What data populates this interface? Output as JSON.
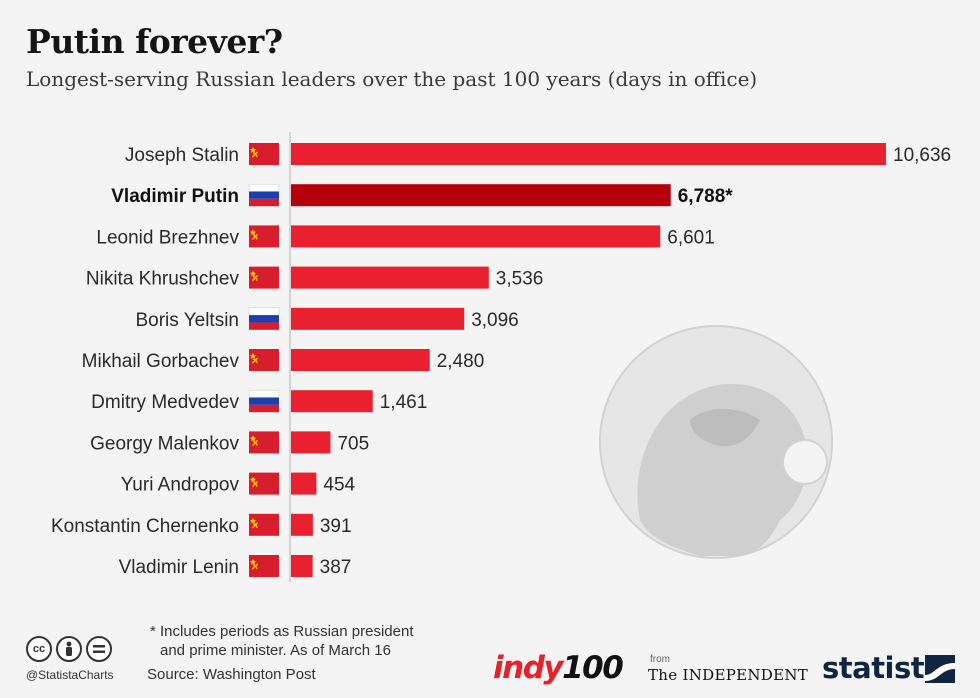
{
  "header": {
    "title": "Putin forever?",
    "subtitle": "Longest-serving Russian leaders over the past 100 years (days in office)"
  },
  "chart_data": {
    "type": "bar",
    "orientation": "horizontal",
    "categories": [
      "Joseph Stalin",
      "Vladimir Putin",
      "Leonid Brezhnev",
      "Nikita Khrushchev",
      "Boris Yeltsin",
      "Mikhail Gorbachev",
      "Dmitry Medvedev",
      "Georgy Malenkov",
      "Yuri Andropov",
      "Konstantin Chernenko",
      "Vladimir Lenin"
    ],
    "values": [
      10636,
      6788,
      6601,
      3536,
      3096,
      2480,
      1461,
      705,
      454,
      391,
      387
    ],
    "value_labels": [
      "10,636",
      "6,788*",
      "6,601",
      "3,536",
      "3,096",
      "2,480",
      "1,461",
      "705",
      "454",
      "391",
      "387"
    ],
    "flags": [
      "ussr",
      "russia",
      "ussr",
      "ussr",
      "russia",
      "ussr",
      "russia",
      "ussr",
      "ussr",
      "ussr",
      "ussr"
    ],
    "highlight": "Vladimir Putin",
    "colors": {
      "bar": "#e8202f",
      "highlight": "#b5000b",
      "axis": "#c8c8c8"
    },
    "xlim": [
      0,
      10636
    ],
    "grid": false
  },
  "footer": {
    "footnote_line1": "* Includes periods as Russian president",
    "footnote_line2": "and prime minister. As of March 16",
    "source": "Source: Washington Post",
    "handle": "@StatistaCharts",
    "license_icons": [
      "cc-icon",
      "by-icon",
      "nd-icon"
    ],
    "indy_prefix": "indy",
    "indy_number": "100",
    "from": "from",
    "independent": "The INDEPENDENT",
    "statista": "statista"
  }
}
